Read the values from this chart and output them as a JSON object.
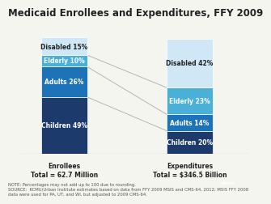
{
  "title": "Medicaid Enrollees and Expenditures, FFY 2009",
  "enrollees": {
    "label": "Enrollees\nTotal = 62.7 Million",
    "segments": [
      {
        "name": "Children 49%",
        "value": 49,
        "color": "#1c3a6b"
      },
      {
        "name": "Adults 26%",
        "value": 26,
        "color": "#1e72b8"
      },
      {
        "name": "Elderly 10%",
        "value": 10,
        "color": "#4ab0d8"
      },
      {
        "name": "Disabled 15%",
        "value": 15,
        "color": "#d0e8f5"
      }
    ]
  },
  "expenditures": {
    "label": "Expenditures\nTotal = $346.5 Billion",
    "segments": [
      {
        "name": "Children 20%",
        "value": 20,
        "color": "#1c3a6b"
      },
      {
        "name": "Adults 14%",
        "value": 14,
        "color": "#1e72b8"
      },
      {
        "name": "Elderly 23%",
        "value": 23,
        "color": "#4ab0d8"
      },
      {
        "name": "Disabled 42%",
        "value": 42,
        "color": "#d0e8f5"
      }
    ]
  },
  "note": "NOTE: Percentages may not add up to 100 due to rounding.\nSOURCE:  KCMU/Urban Institute estimates based on data from FFY 2009 MSIS and CMS-64, 2012; MSIS FFY 2008\ndata were used for PA, UT, and WI, but adjusted to 2009 CMS-64.",
  "background_color": "#f5f5f0",
  "connector_color": "#aaaaaa",
  "title_fontsize": 8.5,
  "label_fontsize": 5.5,
  "segment_fontsize": 5.5,
  "note_fontsize": 3.8
}
